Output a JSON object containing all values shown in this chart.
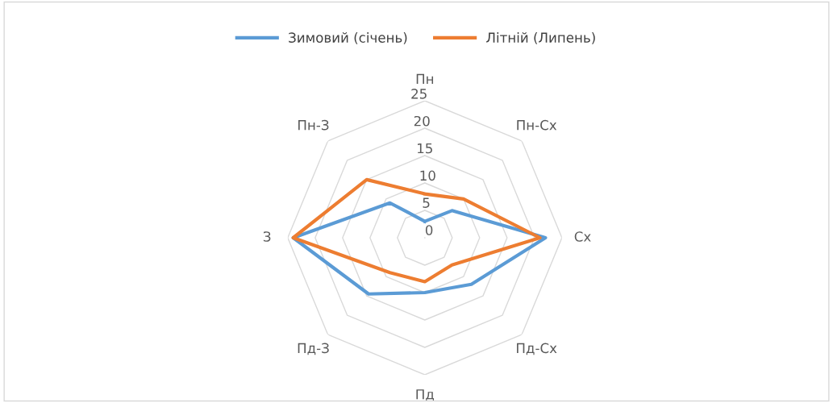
{
  "chart_data": {
    "type": "radar",
    "categories": [
      "Пн",
      "Пн-Сх",
      "Сх",
      "Пд-Сх",
      "Пд",
      "Пд-З",
      "З",
      "Пн-З"
    ],
    "series": [
      {
        "name": "Зимовий (січень)",
        "color": "#5b9bd5",
        "values": [
          3,
          7,
          22,
          12,
          10,
          14.5,
          24,
          9
        ]
      },
      {
        "name": "Літній (Липень)",
        "color": "#ed7d31",
        "values": [
          8,
          10,
          21,
          7,
          8,
          9,
          24,
          15
        ]
      }
    ],
    "ylim": [
      0,
      25
    ],
    "yticks": [
      0,
      5,
      10,
      15,
      20,
      25
    ],
    "grid": true,
    "legend": "top",
    "marker": "none",
    "line_style": "solid"
  }
}
